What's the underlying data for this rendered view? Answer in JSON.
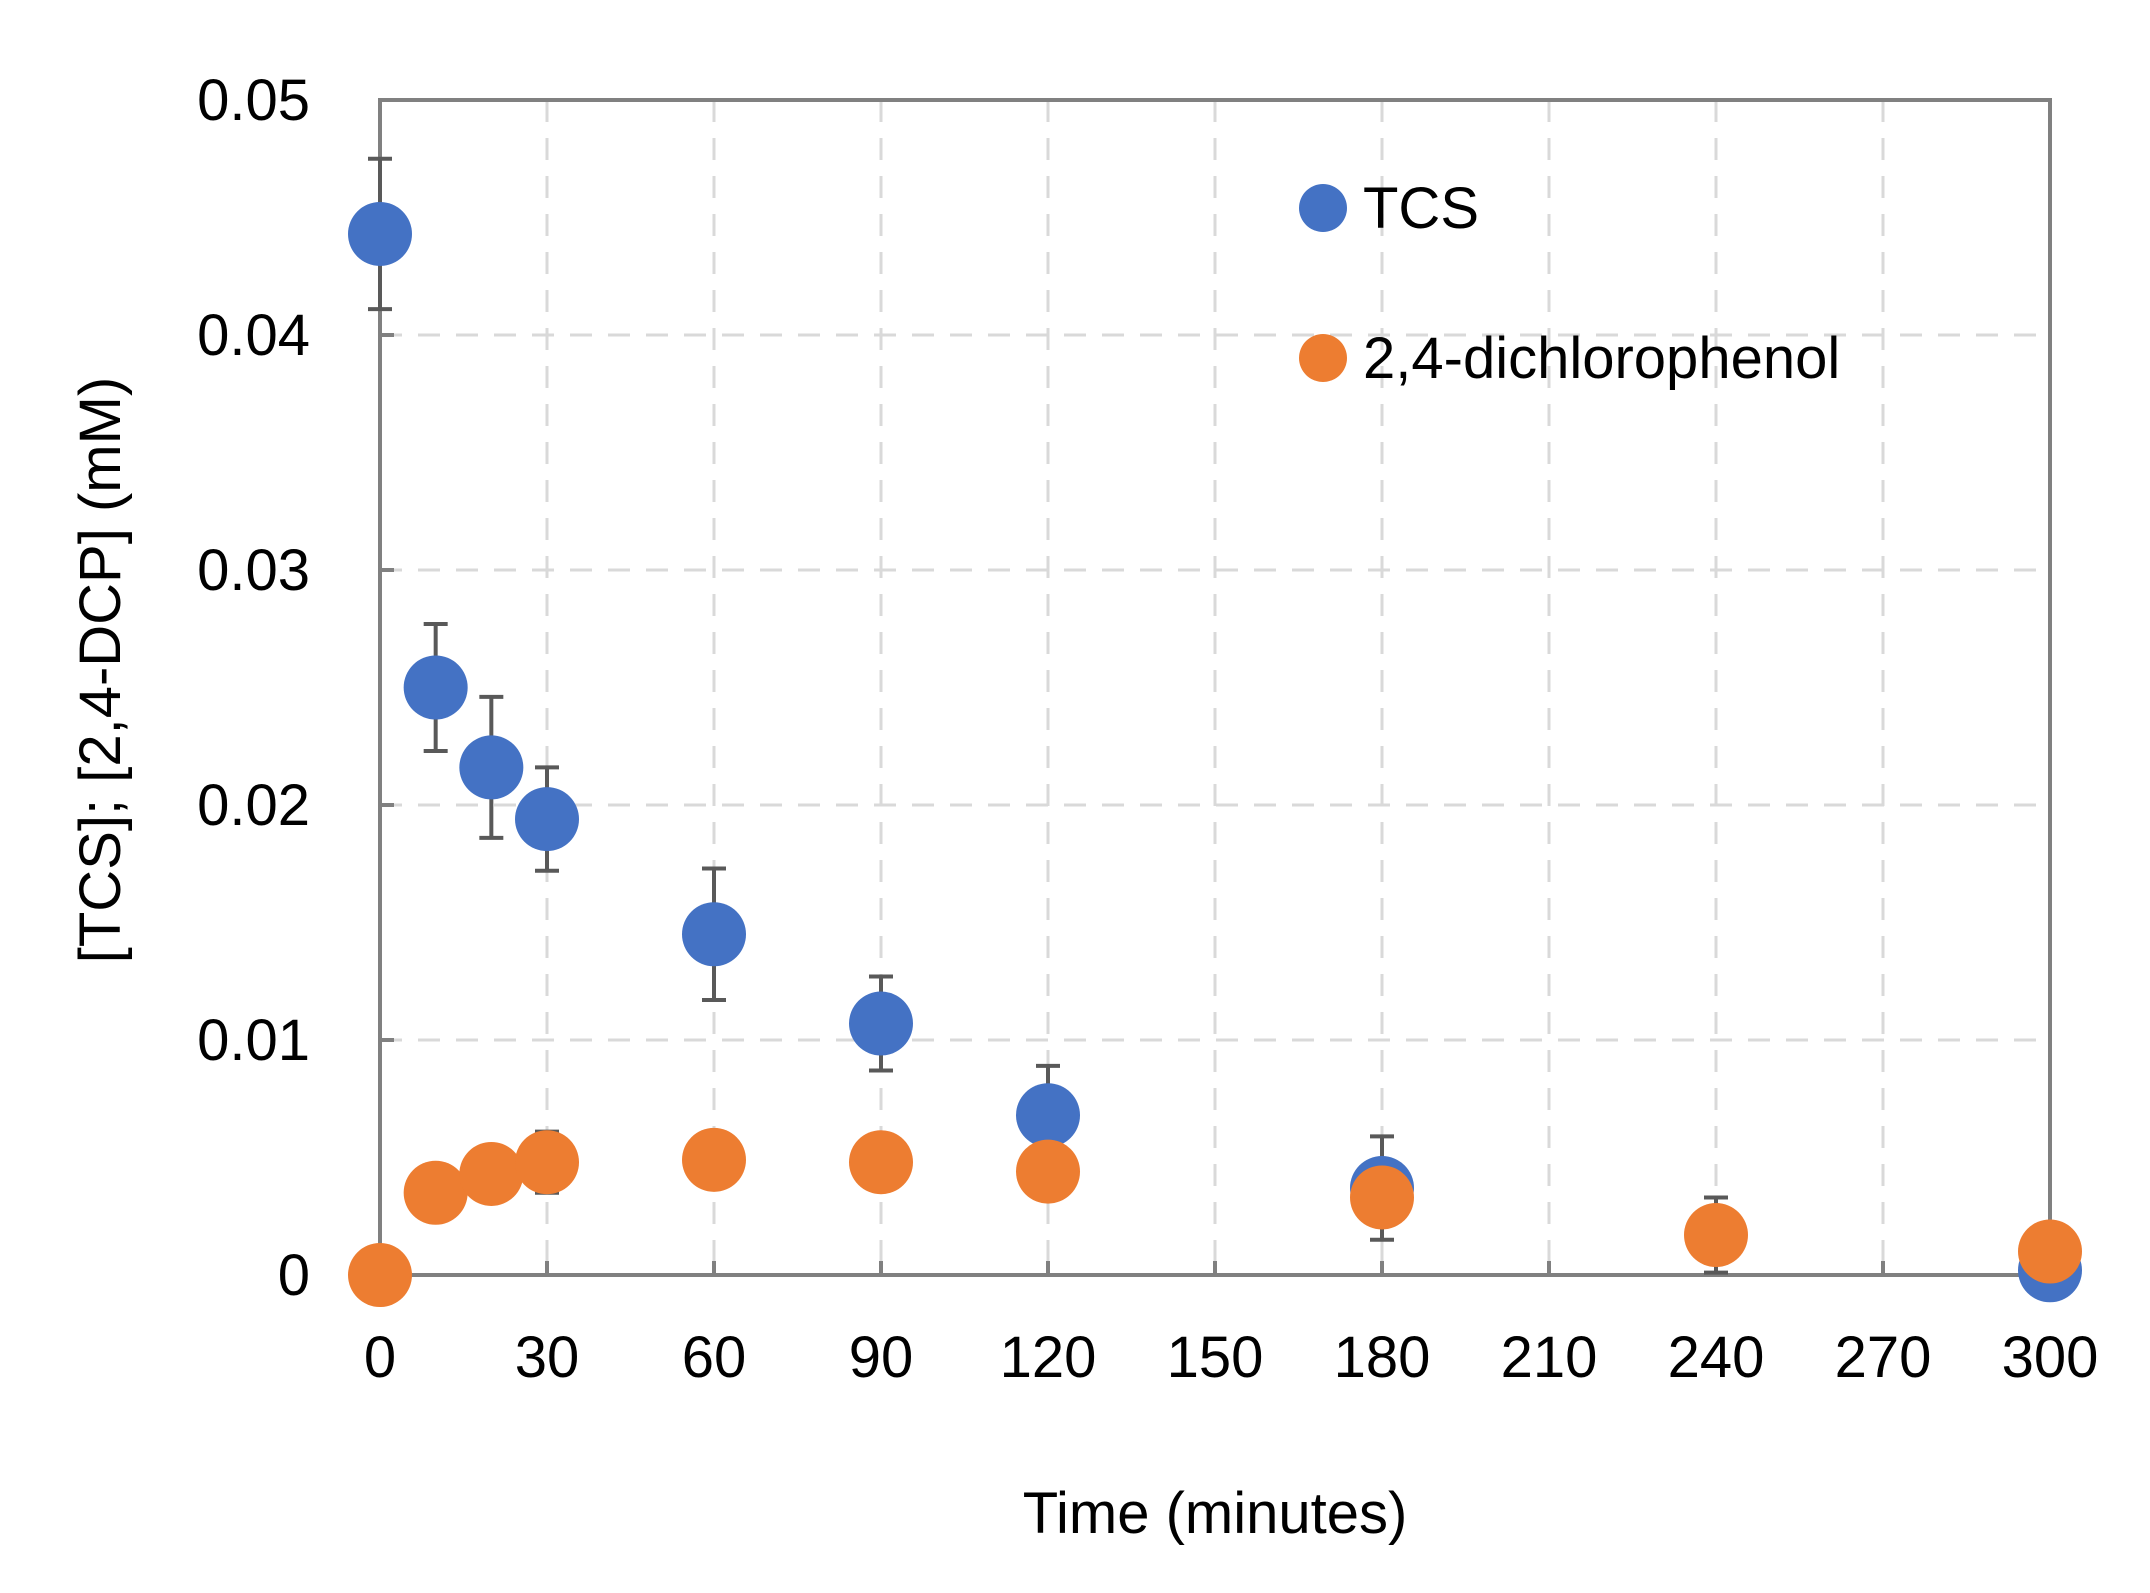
{
  "chart_data": {
    "type": "scatter",
    "title": "",
    "xlabel": "Time (minutes)",
    "ylabel": "[TCS];  [2,4-DCP] (mM)",
    "xlim": [
      0,
      300
    ],
    "ylim": [
      0,
      0.05
    ],
    "xticks": [
      0,
      30,
      60,
      90,
      120,
      150,
      180,
      210,
      240,
      270,
      300
    ],
    "yticks": [
      0,
      0.01,
      0.02,
      0.03,
      0.04,
      0.05
    ],
    "xtick_labels": [
      "0",
      "30",
      "60",
      "90",
      "120",
      "150",
      "180",
      "210",
      "240",
      "270",
      "300"
    ],
    "ytick_labels": [
      "0",
      "0.01",
      "0.02",
      "0.03",
      "0.04",
      "0.05"
    ],
    "grid": "dashed",
    "legend_position": "top-right",
    "series": [
      {
        "name": "TCS",
        "color": "#4472C4",
        "x": [
          0,
          10,
          20,
          30,
          60,
          90,
          120,
          180,
          300
        ],
        "y": [
          0.0443,
          0.025,
          0.0216,
          0.0194,
          0.0145,
          0.0107,
          0.0068,
          0.0037,
          0.0002
        ],
        "error": [
          0.0032,
          0.0027,
          0.003,
          0.0022,
          0.0028,
          0.002,
          0.0021,
          0.0022,
          0.0
        ]
      },
      {
        "name": "2,4-dichlorophenol",
        "color": "#ED7D31",
        "x": [
          0,
          10,
          20,
          30,
          60,
          90,
          120,
          180,
          240,
          300
        ],
        "y": [
          0.0,
          0.0035,
          0.0043,
          0.0048,
          0.0049,
          0.0048,
          0.0044,
          0.0033,
          0.0017,
          0.001
        ],
        "error": [
          0.0,
          0.0,
          0.0,
          0.0013,
          0.0,
          0.0,
          0.0,
          0.0,
          0.0016,
          0.0
        ]
      }
    ]
  }
}
